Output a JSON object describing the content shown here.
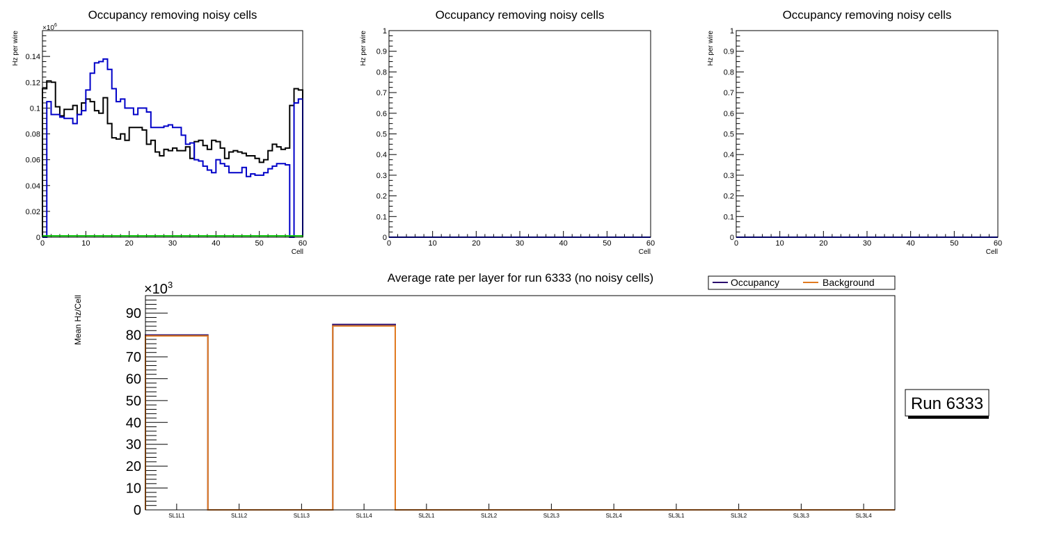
{
  "colors": {
    "black": "#000000",
    "blue": "#0000c8",
    "green": "#00c000",
    "occupancy": "#2a0b6e",
    "background": "#e0791f"
  },
  "run_label": "Run 6333",
  "chart_data": [
    {
      "type": "histogram",
      "title": "Occupancy removing noisy cells",
      "xlabel": "Cell",
      "ylabel": "Hz per wire",
      "exponent_label": "×10",
      "exponent_power": "6",
      "xlim": [
        0,
        60
      ],
      "ylim": [
        0,
        0.16
      ],
      "x_ticks": [
        0,
        10,
        20,
        30,
        40,
        50,
        60
      ],
      "y_ticks": [
        0,
        0.02,
        0.04,
        0.06,
        0.08,
        0.1,
        0.12,
        0.14
      ],
      "y_tick_labels": [
        "0",
        "0.02",
        "0.04",
        "0.06",
        "0.08",
        "0.1",
        "0.12",
        "0.14"
      ],
      "series": [
        {
          "name": "black",
          "color": "#000000",
          "values": [
            0.115,
            0.121,
            0.12,
            0.101,
            0.094,
            0.099,
            0.099,
            0.102,
            0.095,
            0.104,
            0.107,
            0.105,
            0.098,
            0.096,
            0.108,
            0.088,
            0.077,
            0.076,
            0.08,
            0.075,
            0.085,
            0.085,
            0.085,
            0.083,
            0.072,
            0.075,
            0.066,
            0.063,
            0.068,
            0.067,
            0.069,
            0.067,
            0.067,
            0.07,
            0.061,
            0.074,
            0.075,
            0.071,
            0.068,
            0.075,
            0.074,
            0.069,
            0.061,
            0.066,
            0.067,
            0.066,
            0.065,
            0.063,
            0.063,
            0.061,
            0.058,
            0.06,
            0.067,
            0.072,
            0.07,
            0.068,
            0.069,
            0.102,
            0.115,
            0.114
          ]
        },
        {
          "name": "blue",
          "color": "#0000c8",
          "values": [
            0.0,
            0.105,
            0.095,
            0.095,
            0.093,
            0.092,
            0.092,
            0.088,
            0.095,
            0.098,
            0.114,
            0.127,
            0.135,
            0.136,
            0.138,
            0.13,
            0.115,
            0.105,
            0.107,
            0.1,
            0.1,
            0.095,
            0.1,
            0.1,
            0.097,
            0.085,
            0.085,
            0.085,
            0.086,
            0.087,
            0.085,
            0.085,
            0.079,
            0.072,
            0.073,
            0.06,
            0.059,
            0.055,
            0.052,
            0.05,
            0.06,
            0.057,
            0.055,
            0.05,
            0.05,
            0.05,
            0.054,
            0.047,
            0.049,
            0.048,
            0.048,
            0.05,
            0.053,
            0.055,
            0.057,
            0.057,
            0.056,
            0.0,
            0.104,
            0.107
          ]
        },
        {
          "name": "green",
          "color": "#00c000",
          "values": [
            0.001,
            0.001,
            0.001,
            0.001,
            0.001,
            0.001,
            0.001,
            0.001,
            0.001,
            0.001,
            0.001,
            0.001,
            0.001,
            0.001,
            0.001,
            0.001,
            0.001,
            0.001,
            0.001,
            0.001,
            0.001,
            0.001,
            0.001,
            0.001,
            0.001,
            0.001,
            0.001,
            0.001,
            0.001,
            0.001,
            0.001,
            0.001,
            0.001,
            0.001,
            0.001,
            0.001,
            0.001,
            0.001,
            0.001,
            0.001,
            0.001,
            0.001,
            0.001,
            0.001,
            0.001,
            0.001,
            0.001,
            0.001,
            0.001,
            0.001,
            0.001,
            0.001,
            0.001,
            0.001,
            0.001,
            0.001,
            0.001,
            0.001,
            0.001,
            0.001
          ]
        }
      ]
    },
    {
      "type": "histogram",
      "title": "Occupancy removing noisy cells",
      "xlabel": "Cell",
      "ylabel": "Hz per wire",
      "xlim": [
        0,
        60
      ],
      "ylim": [
        0,
        1
      ],
      "x_ticks": [
        0,
        10,
        20,
        30,
        40,
        50,
        60
      ],
      "y_ticks": [
        0,
        0.1,
        0.2,
        0.3,
        0.4,
        0.5,
        0.6,
        0.7,
        0.8,
        0.9,
        1
      ],
      "y_tick_labels": [
        "0",
        "0.1",
        "0.2",
        "0.3",
        "0.4",
        "0.5",
        "0.6",
        "0.7",
        "0.8",
        "0.9",
        "1"
      ],
      "series": [
        {
          "name": "blue",
          "color": "#0000c8",
          "values": [
            0,
            0,
            0,
            0,
            0,
            0,
            0,
            0,
            0,
            0,
            0,
            0,
            0,
            0,
            0,
            0,
            0,
            0,
            0,
            0,
            0,
            0,
            0,
            0,
            0,
            0,
            0,
            0,
            0,
            0,
            0,
            0,
            0,
            0,
            0,
            0,
            0,
            0,
            0,
            0,
            0,
            0,
            0,
            0,
            0,
            0,
            0,
            0,
            0,
            0,
            0,
            0,
            0,
            0,
            0,
            0,
            0,
            0,
            0,
            0
          ]
        }
      ]
    },
    {
      "type": "histogram",
      "title": "Occupancy removing noisy cells",
      "xlabel": "Cell",
      "ylabel": "Hz per wire",
      "xlim": [
        0,
        60
      ],
      "ylim": [
        0,
        1
      ],
      "x_ticks": [
        0,
        10,
        20,
        30,
        40,
        50,
        60
      ],
      "y_ticks": [
        0,
        0.1,
        0.2,
        0.3,
        0.4,
        0.5,
        0.6,
        0.7,
        0.8,
        0.9,
        1
      ],
      "y_tick_labels": [
        "0",
        "0.1",
        "0.2",
        "0.3",
        "0.4",
        "0.5",
        "0.6",
        "0.7",
        "0.8",
        "0.9",
        "1"
      ],
      "series": [
        {
          "name": "blue",
          "color": "#0000c8",
          "values": [
            0,
            0,
            0,
            0,
            0,
            0,
            0,
            0,
            0,
            0,
            0,
            0,
            0,
            0,
            0,
            0,
            0,
            0,
            0,
            0,
            0,
            0,
            0,
            0,
            0,
            0,
            0,
            0,
            0,
            0,
            0,
            0,
            0,
            0,
            0,
            0,
            0,
            0,
            0,
            0,
            0,
            0,
            0,
            0,
            0,
            0,
            0,
            0,
            0,
            0,
            0,
            0,
            0,
            0,
            0,
            0,
            0,
            0,
            0,
            0
          ]
        }
      ]
    },
    {
      "type": "histogram",
      "title": "Average rate per layer for run 6333 (no noisy cells)",
      "xlabel": "",
      "ylabel": "Mean Hz/Cell",
      "exponent_label": "×10",
      "exponent_power": "3",
      "ylim": [
        0,
        98
      ],
      "y_ticks": [
        0,
        10,
        20,
        30,
        40,
        50,
        60,
        70,
        80,
        90
      ],
      "y_tick_labels": [
        "0",
        "10",
        "20",
        "30",
        "40",
        "50",
        "60",
        "70",
        "80",
        "90"
      ],
      "categories": [
        "SL1L1",
        "SL1L2",
        "SL1L3",
        "SL1L4",
        "SL2L1",
        "SL2L2",
        "SL2L3",
        "SL2L4",
        "SL3L1",
        "SL3L2",
        "SL3L3",
        "SL3L4"
      ],
      "legend": [
        "Occupancy",
        "Background"
      ],
      "series": [
        {
          "name": "Occupancy",
          "color": "#2a0b6e",
          "values": [
            80.0,
            0,
            0,
            84.8,
            0,
            0,
            0,
            0,
            0,
            0,
            0,
            0
          ]
        },
        {
          "name": "Background",
          "color": "#e0791f",
          "values": [
            79.6,
            0,
            0,
            84.1,
            0,
            0,
            0,
            0,
            0,
            0,
            0,
            0
          ]
        }
      ]
    }
  ]
}
